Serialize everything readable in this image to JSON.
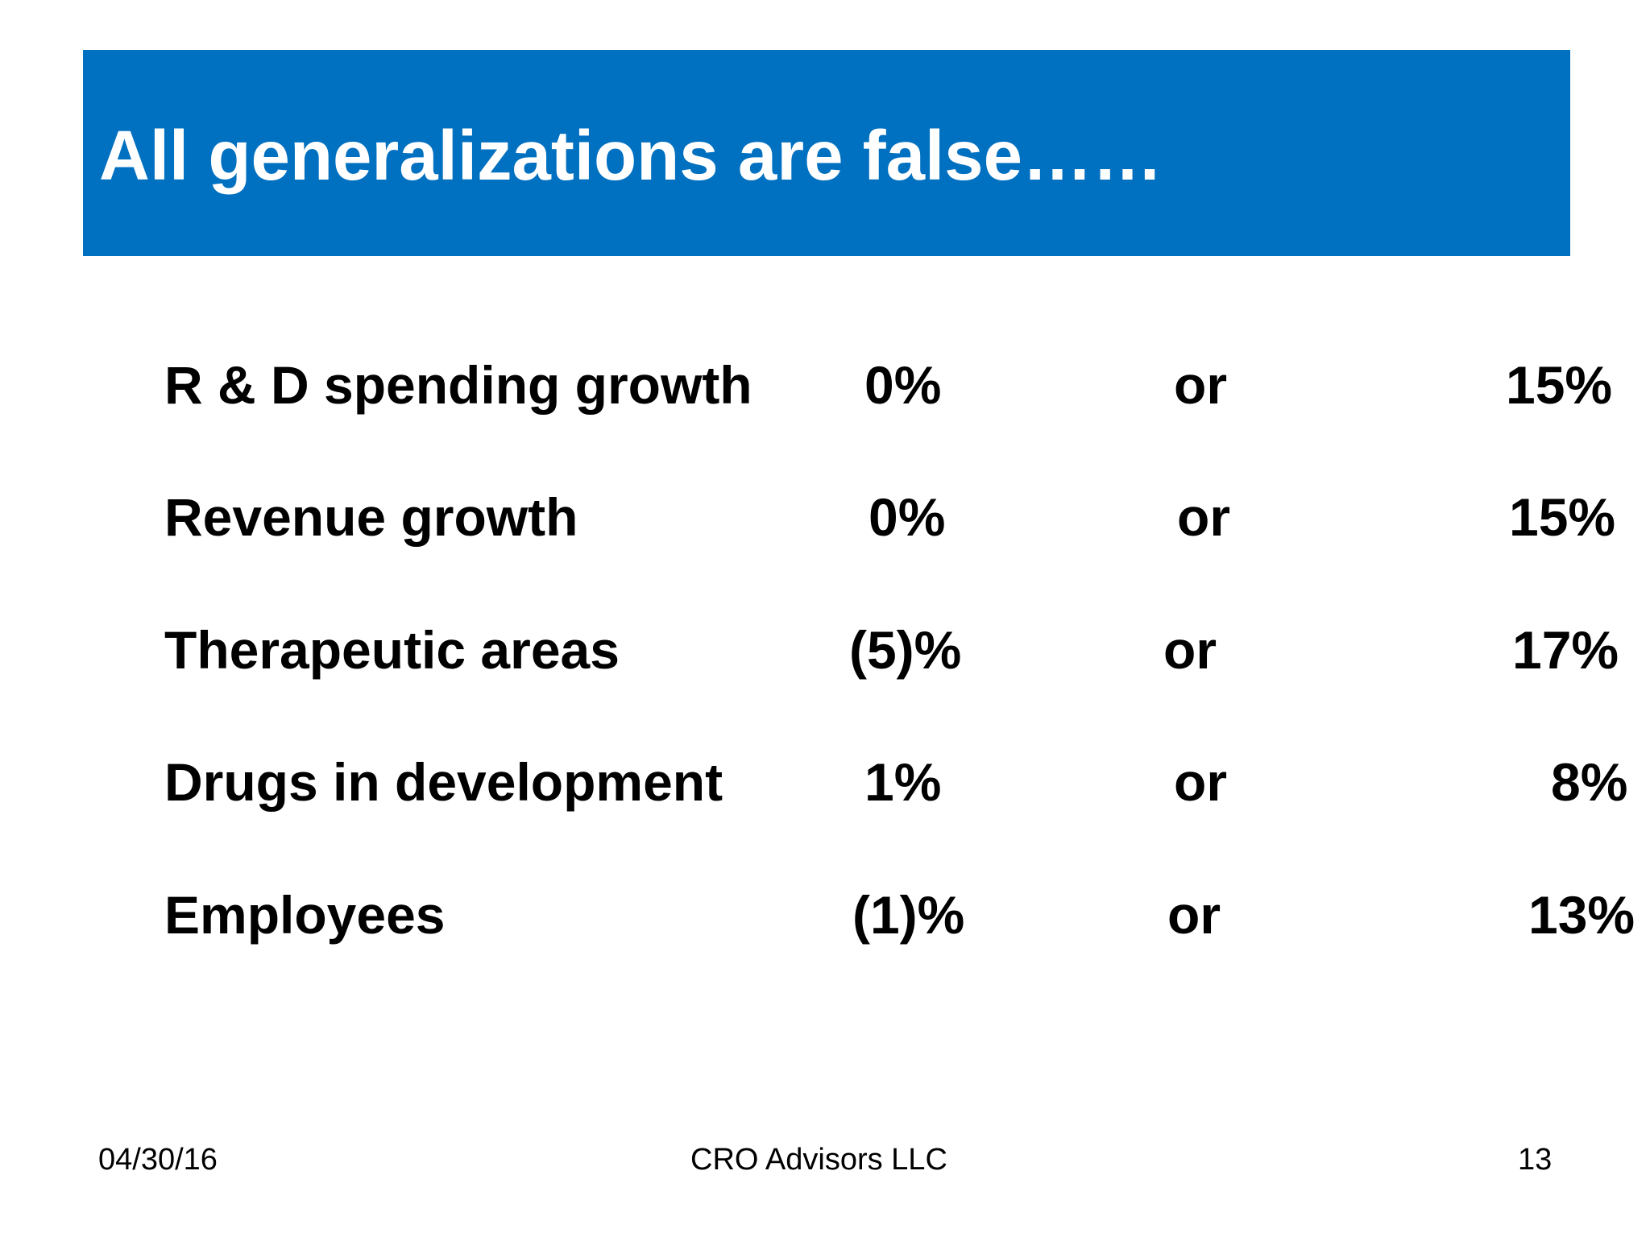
{
  "title": "All generalizations are false……",
  "rows": [
    {
      "label": "R & D spending growth",
      "low": "0%",
      "or": "or",
      "high": "15%"
    },
    {
      "label": "Revenue growth",
      "low": "0%",
      "or": "or",
      "high": "15%"
    },
    {
      "label": "Therapeutic areas",
      "low": "(5)%",
      "or": "or",
      "high": "17%"
    },
    {
      "label": "Drugs in development",
      "low": "1%",
      "or": "or",
      "high": "8%"
    },
    {
      "label": "Employees",
      "low": "(1)%",
      "or": "or",
      "high": "13%"
    }
  ],
  "footer": {
    "date": "04/30/16",
    "company": "CRO Advisors LLC",
    "page": "13"
  },
  "colors": {
    "title_bar": "#0070c0",
    "title_text": "#ffffff",
    "body_text": "#000000"
  }
}
